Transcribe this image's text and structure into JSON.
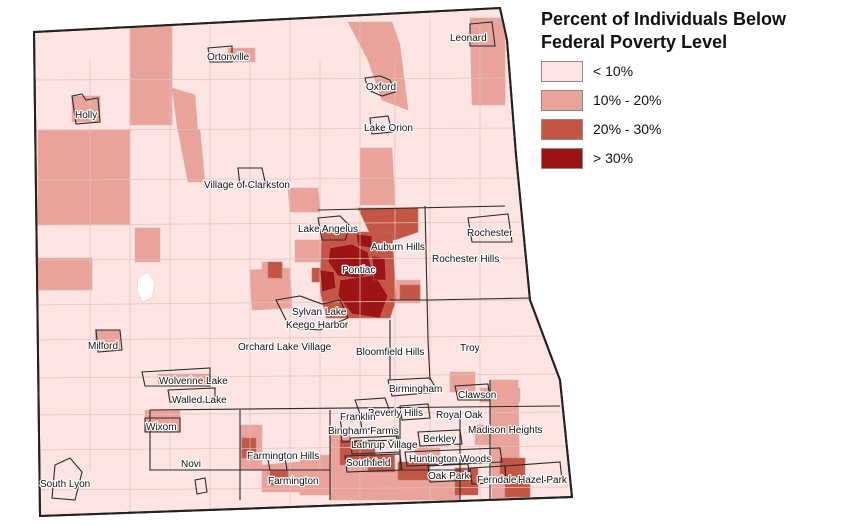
{
  "legend": {
    "title_line1": "Percent of Individuals Below",
    "title_line2": "Federal Poverty Level",
    "items": [
      {
        "label": "< 10%",
        "color": "#fbe4e1"
      },
      {
        "label": "10% - 20%",
        "color": "#e9a39a"
      },
      {
        "label": "20% - 30%",
        "color": "#c55545"
      },
      {
        "label": "> 30%",
        "color": "#9c1515"
      }
    ]
  },
  "places": [
    "Leonard",
    "Ortonville",
    "Oxford",
    "Holly",
    "Lake Orion",
    "Village of Clarkston",
    "Lake Angelus",
    "Auburn Hills",
    "Rochester",
    "Rochester Hills",
    "Pontiac",
    "Sylvan Lake",
    "Keego Harbor",
    "Orchard Lake Village",
    "Bloomfield Hills",
    "Troy",
    "Milford",
    "Wolverine Lake",
    "Walled Lake",
    "Birmingham",
    "Clawson",
    "Beverly Hills",
    "Royal Oak",
    "Franklin",
    "Bingham Farms",
    "Madison Heights",
    "Wixom",
    "Lathrup Village",
    "Berkley",
    "Farmington Hills",
    "Southfield",
    "Huntington Woods",
    "Novi",
    "Oak Park",
    "Ferndale",
    "Hazel Park",
    "South Lyon",
    "Farmington"
  ]
}
